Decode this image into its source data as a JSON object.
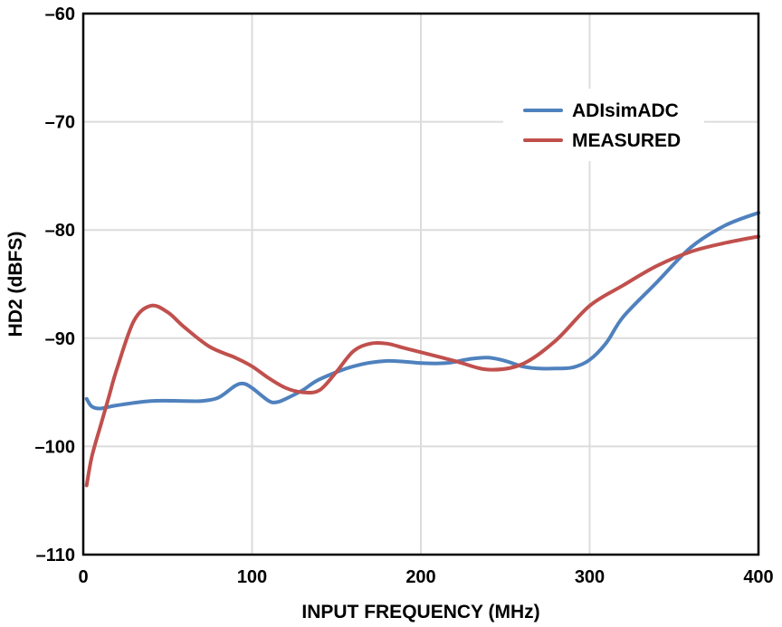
{
  "chart_data": {
    "type": "line",
    "title": "",
    "xlabel": "INPUT FREQUENCY (MHz)",
    "ylabel": "HD2 (dBFS)",
    "xlim": [
      0,
      400
    ],
    "ylim": [
      -110,
      -60
    ],
    "xticks": [
      0,
      100,
      200,
      300,
      400
    ],
    "yticks": [
      -110,
      -100,
      -90,
      -80,
      -70,
      -60
    ],
    "xtick_labels": [
      "0",
      "100",
      "200",
      "300",
      "400"
    ],
    "ytick_labels": [
      "–110",
      "–100",
      "–90",
      "–80",
      "–70",
      "–60"
    ],
    "grid": true,
    "legend_position": "top-right",
    "series": [
      {
        "name": "ADIsimADC",
        "color": "#4f81bd",
        "x": [
          2,
          5,
          10,
          20,
          40,
          60,
          70,
          80,
          90,
          95,
          100,
          110,
          115,
          120,
          130,
          140,
          160,
          180,
          200,
          215,
          230,
          240,
          250,
          260,
          270,
          280,
          290,
          300,
          310,
          320,
          340,
          360,
          380,
          400
        ],
        "y": [
          -95.6,
          -96.3,
          -96.5,
          -96.2,
          -95.8,
          -95.8,
          -95.8,
          -95.5,
          -94.4,
          -94.2,
          -94.6,
          -95.8,
          -95.9,
          -95.6,
          -94.8,
          -93.8,
          -92.6,
          -92.1,
          -92.3,
          -92.3,
          -91.9,
          -91.8,
          -92.1,
          -92.6,
          -92.8,
          -92.8,
          -92.7,
          -92.0,
          -90.4,
          -88.0,
          -84.8,
          -81.6,
          -79.6,
          -78.4
        ]
      },
      {
        "name": "MEASURED",
        "color": "#c0504d",
        "x": [
          2,
          5,
          10,
          15,
          20,
          30,
          40,
          50,
          60,
          75,
          90,
          100,
          110,
          120,
          130,
          140,
          150,
          160,
          170,
          180,
          190,
          200,
          220,
          240,
          260,
          280,
          300,
          320,
          340,
          360,
          380,
          400
        ],
        "y": [
          -103.6,
          -101.0,
          -98.2,
          -95.5,
          -92.8,
          -88.4,
          -87.0,
          -87.6,
          -89.0,
          -90.8,
          -91.8,
          -92.6,
          -93.7,
          -94.6,
          -95.0,
          -94.8,
          -93.1,
          -91.2,
          -90.5,
          -90.5,
          -90.9,
          -91.3,
          -92.1,
          -92.9,
          -92.4,
          -90.2,
          -87.0,
          -85.1,
          -83.3,
          -82.0,
          -81.2,
          -80.6
        ]
      }
    ]
  }
}
